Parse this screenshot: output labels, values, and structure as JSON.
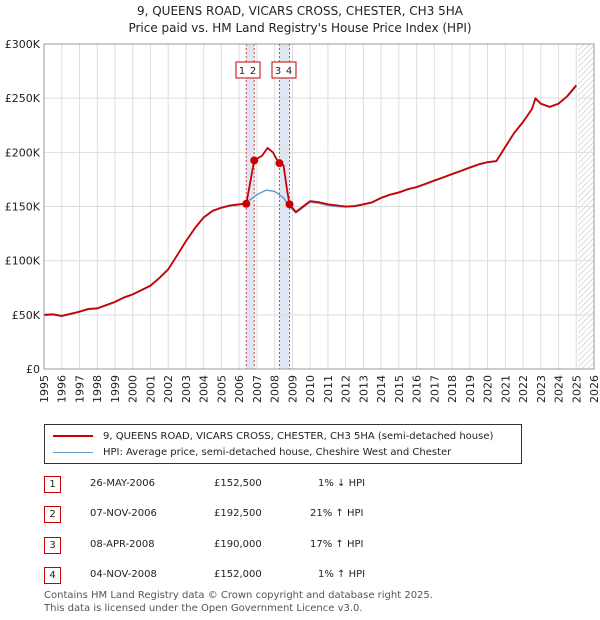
{
  "title_line1": "9, QUEENS ROAD, VICARS CROSS, CHESTER, CH3 5HA",
  "title_line2": "Price paid vs. HM Land Registry's House Price Index (HPI)",
  "legend": {
    "price_label": "9, QUEENS ROAD, VICARS CROSS, CHESTER, CH3 5HA (semi-detached house)",
    "hpi_label": "HPI: Average price, semi-detached house, Cheshire West and Chester"
  },
  "transactions": [
    {
      "num": "1",
      "date": "26-MAY-2006",
      "price": "£152,500",
      "hpi": "1% ↓ HPI"
    },
    {
      "num": "2",
      "date": "07-NOV-2006",
      "price": "£192,500",
      "hpi": "21% ↑ HPI"
    },
    {
      "num": "3",
      "date": "08-APR-2008",
      "price": "£190,000",
      "hpi": "17% ↑ HPI"
    },
    {
      "num": "4",
      "date": "04-NOV-2008",
      "price": "£152,000",
      "hpi": "1% ↑ HPI"
    }
  ],
  "footer": {
    "line1": "Contains HM Land Registry data © Crown copyright and database right 2025.",
    "line2": "This data is licensed under the Open Government Licence v3.0."
  },
  "colors": {
    "price": "#cc0000",
    "hpi": "#6699cc",
    "grid": "#dddddd",
    "band": "#dde6f2",
    "vline": "#cc0000"
  },
  "chart_data": {
    "type": "line",
    "title": "9, QUEENS ROAD, VICARS CROSS, CHESTER, CH3 5HA",
    "subtitle": "Price paid vs. HM Land Registry's House Price Index (HPI)",
    "xlabel": "",
    "ylabel": "",
    "xlim": [
      1995,
      2026
    ],
    "ylim": [
      0,
      300000
    ],
    "y_ticks": [
      0,
      50000,
      100000,
      150000,
      200000,
      250000,
      300000
    ],
    "y_tick_labels": [
      "£0",
      "£50K",
      "£100K",
      "£150K",
      "£200K",
      "£250K",
      "£300K"
    ],
    "x_ticks": [
      1995,
      1996,
      1997,
      1998,
      1999,
      2000,
      2001,
      2002,
      2003,
      2004,
      2005,
      2006,
      2007,
      2008,
      2009,
      2010,
      2011,
      2012,
      2013,
      2014,
      2015,
      2016,
      2017,
      2018,
      2019,
      2020,
      2021,
      2022,
      2023,
      2024,
      2025,
      2026
    ],
    "grid": true,
    "legend_position": "below",
    "shaded_bands": [
      {
        "from": 2006.4,
        "to": 2006.85
      },
      {
        "from": 2008.27,
        "to": 2008.84
      }
    ],
    "future_hatch_from": 2025.1,
    "series": [
      {
        "name": "9, QUEENS ROAD, VICARS CROSS, CHESTER, CH3 5HA (semi-detached house)",
        "x": [
          1995.0,
          1995.5,
          1996.0,
          1996.5,
          1997.0,
          1997.5,
          1998.0,
          1998.5,
          1999.0,
          1999.5,
          2000.0,
          2000.5,
          2001.0,
          2001.5,
          2002.0,
          2002.5,
          2003.0,
          2003.5,
          2004.0,
          2004.5,
          2005.0,
          2005.5,
          2006.0,
          2006.4,
          2006.85,
          2007.0,
          2007.3,
          2007.6,
          2007.9,
          2008.1,
          2008.27,
          2008.5,
          2008.7,
          2008.84,
          2009.2,
          2009.6,
          2010.0,
          2010.5,
          2011.0,
          2011.5,
          2012.0,
          2012.5,
          2013.0,
          2013.5,
          2014.0,
          2014.5,
          2015.0,
          2015.5,
          2016.0,
          2016.5,
          2017.0,
          2017.5,
          2018.0,
          2018.5,
          2019.0,
          2019.5,
          2020.0,
          2020.5,
          2021.0,
          2021.5,
          2022.0,
          2022.5,
          2022.7,
          2023.0,
          2023.5,
          2024.0,
          2024.5,
          2025.0
        ],
        "values": [
          50000,
          50500,
          49000,
          51000,
          53000,
          55500,
          56000,
          59000,
          62000,
          66000,
          69000,
          73000,
          77000,
          84000,
          92000,
          105000,
          118000,
          130000,
          140000,
          146000,
          149000,
          151000,
          152000,
          152500,
          192500,
          194000,
          197000,
          204000,
          200000,
          194000,
          190000,
          188000,
          165000,
          152000,
          145000,
          150000,
          155000,
          154000,
          152000,
          151000,
          150000,
          150500,
          152000,
          154000,
          158000,
          161000,
          163000,
          166000,
          168000,
          171000,
          174000,
          177000,
          180000,
          183000,
          186000,
          189000,
          191000,
          192000,
          205000,
          218000,
          228000,
          240000,
          250000,
          245000,
          242000,
          245000,
          252000,
          262000
        ]
      },
      {
        "name": "HPI: Average price, semi-detached house, Cheshire West and Chester",
        "x": [
          1995.0,
          1995.5,
          1996.0,
          1996.5,
          1997.0,
          1997.5,
          1998.0,
          1998.5,
          1999.0,
          1999.5,
          2000.0,
          2000.5,
          2001.0,
          2001.5,
          2002.0,
          2002.5,
          2003.0,
          2003.5,
          2004.0,
          2004.5,
          2005.0,
          2005.5,
          2006.0,
          2006.4,
          2006.85,
          2007.0,
          2007.5,
          2008.0,
          2008.5,
          2008.84,
          2009.2,
          2009.6,
          2010.0,
          2010.5,
          2011.0,
          2011.5,
          2012.0,
          2012.5,
          2013.0,
          2013.5,
          2014.0,
          2014.5,
          2015.0,
          2015.5,
          2016.0,
          2016.5,
          2017.0,
          2017.5,
          2018.0,
          2018.5,
          2019.0,
          2019.5,
          2020.0,
          2020.5,
          2021.0,
          2021.5,
          2022.0,
          2022.5,
          2022.7,
          2023.0,
          2023.5,
          2024.0,
          2024.5,
          2025.0
        ],
        "values": [
          49500,
          50000,
          48500,
          50500,
          52500,
          55000,
          55500,
          58500,
          61500,
          65500,
          68500,
          72500,
          76500,
          83500,
          91500,
          104500,
          117500,
          129500,
          139500,
          145500,
          148500,
          150500,
          151500,
          154000,
          159000,
          161000,
          165000,
          164000,
          158000,
          150000,
          144000,
          149000,
          154000,
          153000,
          151000,
          150000,
          149500,
          150000,
          151500,
          153500,
          157500,
          160500,
          162500,
          165500,
          167500,
          170500,
          173500,
          176500,
          179500,
          182500,
          185500,
          188500,
          190500,
          191500,
          204500,
          217500,
          227500,
          239500,
          249000,
          244500,
          241500,
          244500,
          251500,
          261000
        ]
      }
    ],
    "sale_points": [
      {
        "label": "1",
        "x": 2006.4,
        "value": 152500
      },
      {
        "label": "2",
        "x": 2006.85,
        "value": 192500
      },
      {
        "label": "3",
        "x": 2008.27,
        "value": 190000
      },
      {
        "label": "4",
        "x": 2008.84,
        "value": 152000
      }
    ]
  }
}
